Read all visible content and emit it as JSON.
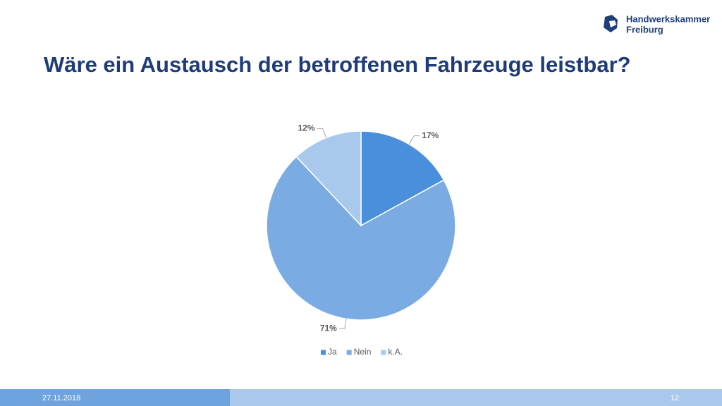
{
  "logo": {
    "lines": [
      "Handwerkskammer",
      "Freiburg"
    ]
  },
  "footer": {
    "date": "27.11.2018",
    "page": "12"
  },
  "chart_data": {
    "type": "pie",
    "title": "Wäre ein Austausch der betroffenen Fahrzeuge leistbar?",
    "categories": [
      "Ja",
      "Nein",
      "k.A."
    ],
    "values": [
      17,
      71,
      12
    ],
    "value_labels": [
      "17%",
      "71%",
      "12%"
    ],
    "colors": [
      "#4a8fdb",
      "#7aace3",
      "#a8c8ee"
    ],
    "legend": "bottom"
  }
}
